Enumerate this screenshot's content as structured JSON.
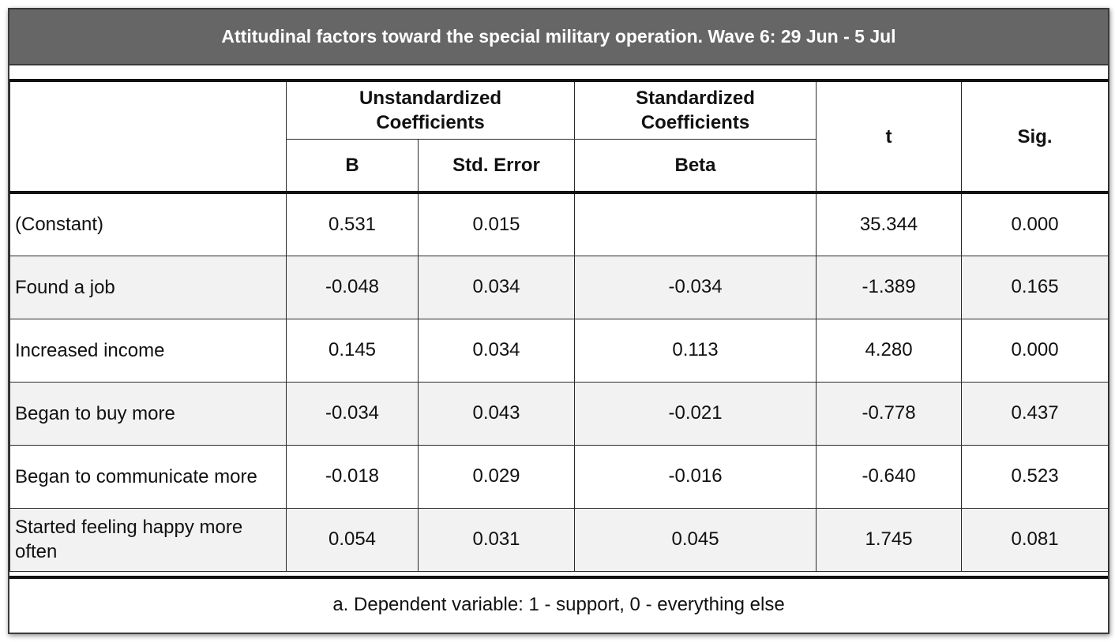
{
  "title": "Attitudinal factors toward the special military operation. Wave 6: 29 Jun - 5 Jul",
  "headers": {
    "unstandardized": "Unstandardized Coefficients",
    "standardized": "Standardized Coefficients",
    "t": "t",
    "sig": "Sig.",
    "b": "B",
    "std_error": "Std. Error",
    "beta": "Beta"
  },
  "rows": [
    {
      "label": "(Constant)",
      "b": "0.531",
      "std_error": "0.015",
      "beta": "",
      "t": "35.344",
      "sig": "0.000"
    },
    {
      "label": "Found a job",
      "b": "-0.048",
      "std_error": "0.034",
      "beta": "-0.034",
      "t": "-1.389",
      "sig": "0.165"
    },
    {
      "label": "Increased income",
      "b": "0.145",
      "std_error": "0.034",
      "beta": "0.113",
      "t": "4.280",
      "sig": "0.000"
    },
    {
      "label": "Began to buy more",
      "b": "-0.034",
      "std_error": "0.043",
      "beta": "-0.021",
      "t": "-0.778",
      "sig": "0.437"
    },
    {
      "label": "Began to communicate more",
      "b": "-0.018",
      "std_error": "0.029",
      "beta": "-0.016",
      "t": "-0.640",
      "sig": "0.523"
    },
    {
      "label": "Started feeling happy more often",
      "b": "0.054",
      "std_error": "0.031",
      "beta": "0.045",
      "t": "1.745",
      "sig": "0.081"
    }
  ],
  "footnote": "a. Dependent variable: 1 - support, 0 - everything else"
}
